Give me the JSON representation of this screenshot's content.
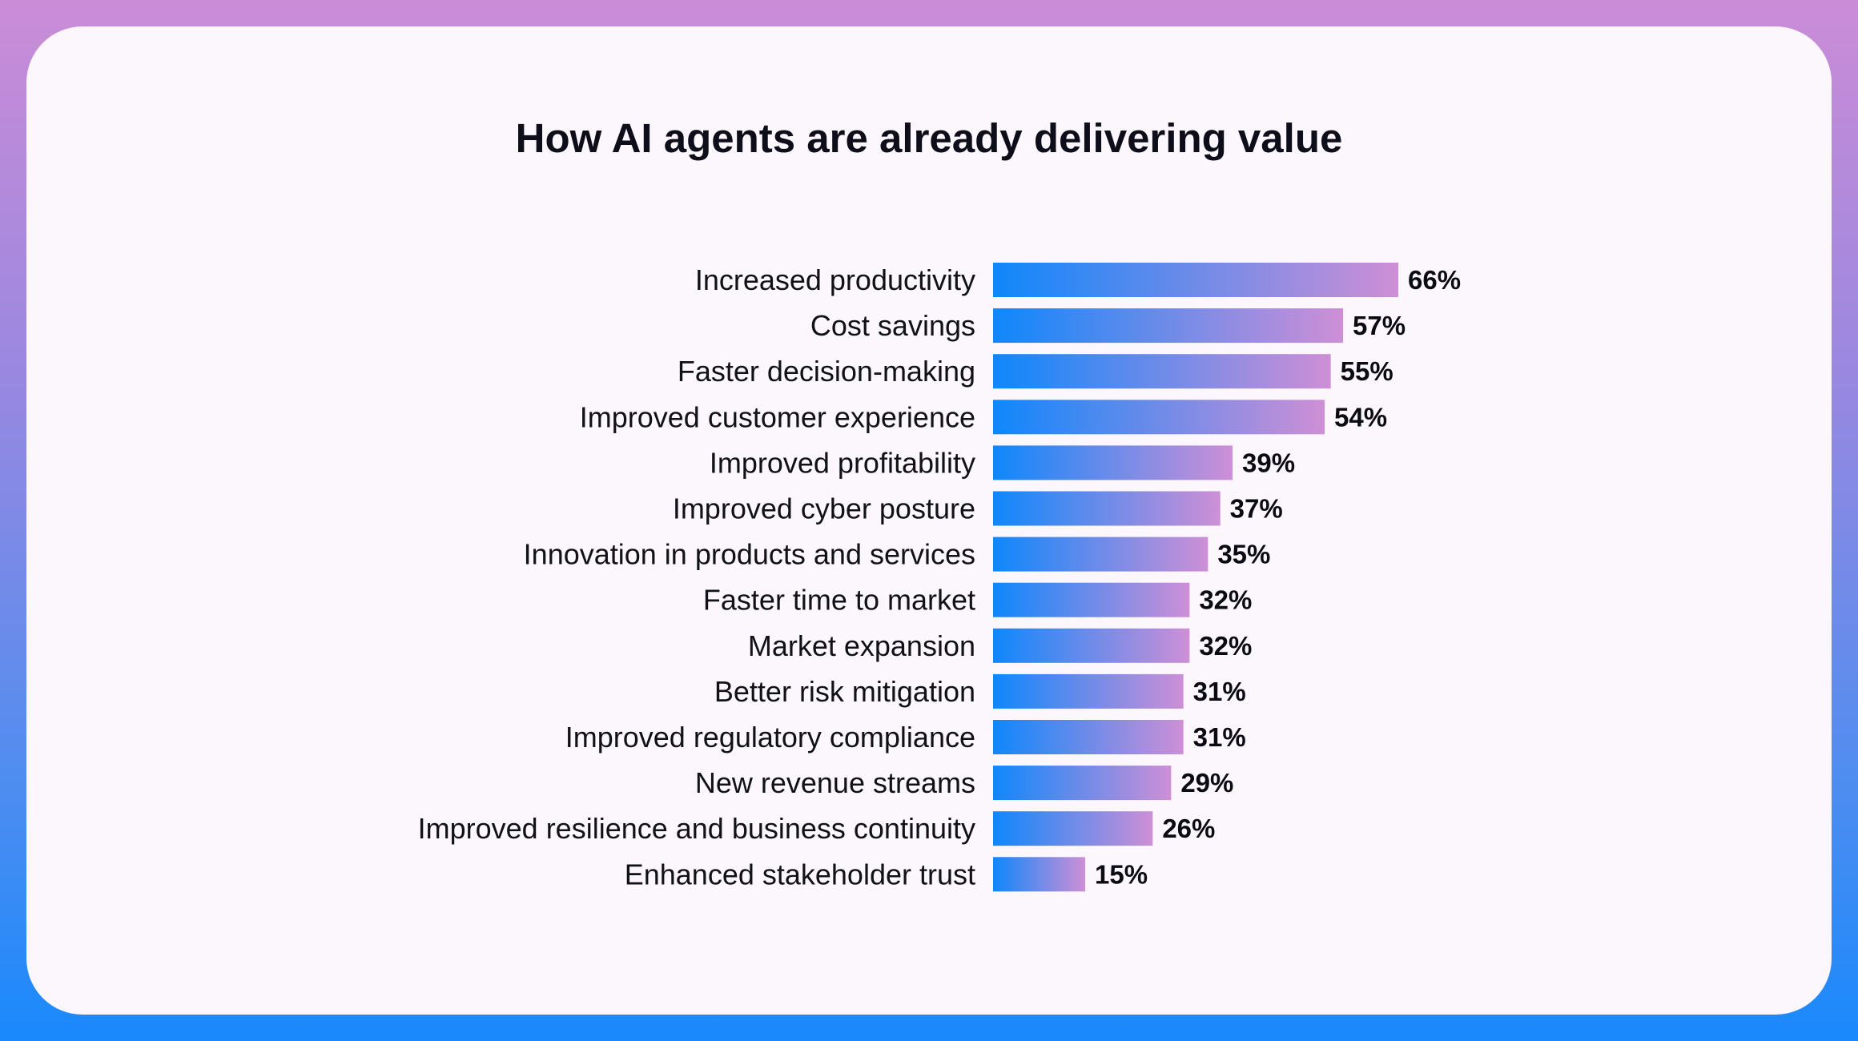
{
  "chart_data": {
    "type": "bar",
    "orientation": "horizontal",
    "title": "How AI agents are already delivering value",
    "categories": [
      "Increased productivity",
      "Cost savings",
      "Faster decision-making",
      "Improved customer experience",
      "Improved profitability",
      "Improved cyber posture",
      "Innovation in products and services",
      "Faster time to market",
      "Market expansion",
      "Better risk mitigation",
      "Improved regulatory compliance",
      "New revenue streams",
      "Improved resilience and business continuity",
      "Enhanced stakeholder trust"
    ],
    "values": [
      66,
      57,
      55,
      54,
      39,
      37,
      35,
      32,
      32,
      31,
      31,
      29,
      26,
      15
    ],
    "value_labels": [
      "66%",
      "57%",
      "55%",
      "54%",
      "39%",
      "37%",
      "35%",
      "32%",
      "32%",
      "31%",
      "31%",
      "29%",
      "26%",
      "15%"
    ],
    "unit": "%",
    "xlim": [
      0,
      66
    ],
    "grid": false,
    "legend": "none",
    "colors": {
      "bar_start": "#0F87FB",
      "bar_end": "#CE8FD6",
      "background_top": "#CB8CD7",
      "background_bottom": "#1989FC",
      "card": "#FCF7FC"
    }
  }
}
